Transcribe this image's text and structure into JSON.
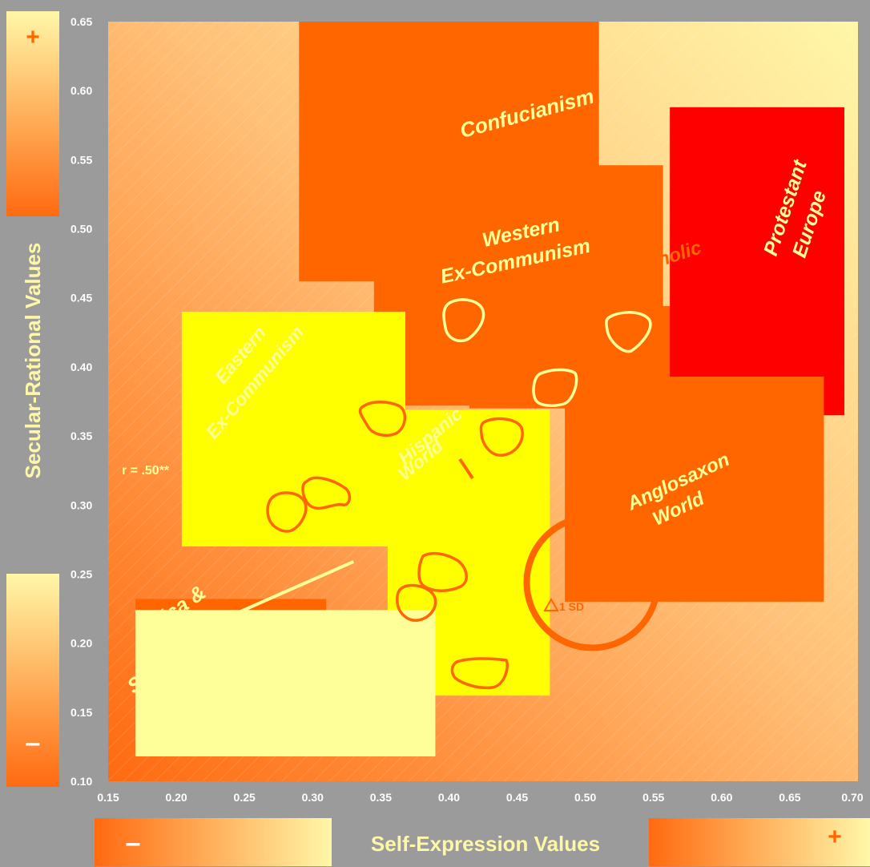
{
  "chart_data": {
    "type": "scatter",
    "title": "",
    "xlabel": "Self-Expression Values",
    "ylabel": "Secular-Rational Values",
    "xlim": [
      0.15,
      0.7
    ],
    "ylim": [
      0.1,
      0.65
    ],
    "x_ticks": [
      "0.15",
      "0.20",
      "0.25",
      "0.30",
      "0.35",
      "0.40",
      "0.45",
      "0.50",
      "0.55",
      "0.60",
      "0.65",
      "0.70"
    ],
    "y_ticks": [
      "0.65",
      "0.60",
      "0.55",
      "0.50",
      "0.45",
      "0.40",
      "0.35",
      "0.30",
      "0.25",
      "0.20",
      "0.15",
      "0.10"
    ],
    "legend_signs": {
      "y_top": "+",
      "y_bottom": "–",
      "x_left": "–",
      "x_right": "+"
    },
    "correlation_label": "r = .50**",
    "sd_label": "1 SD",
    "colors": {
      "frame": "#9b9b9b",
      "gradient_low": "#ff6a10",
      "gradient_high": "#fff7a8",
      "zone_orange": "#ff6600",
      "zone_red": "#ff0000",
      "zone_yellow": "#ffff00",
      "zone_pale": "#ffff99",
      "zone_label": "#ffff99",
      "tick_label": "#ffffff"
    },
    "zones": [
      {
        "name": "Confucianism",
        "x": [
          0.29,
          0.51
        ],
        "y": [
          0.462,
          0.65
        ],
        "color": "#ff6600"
      },
      {
        "name": "Western Ex-Communism",
        "x": [
          0.345,
          0.557
        ],
        "y": [
          0.372,
          0.546
        ],
        "color": "#ff6600"
      },
      {
        "name": "Catholic",
        "x": [
          0.415,
          0.58
        ],
        "y": [
          0.37,
          0.444
        ],
        "color": "#ff6600"
      },
      {
        "name": "Protestant Europe",
        "x": [
          0.562,
          0.69
        ],
        "y": [
          0.365,
          0.588
        ],
        "color": "#ff0000"
      },
      {
        "name": "Eastern Ex-Communism",
        "x": [
          0.204,
          0.368
        ],
        "y": [
          0.27,
          0.44
        ],
        "color": "#ffff00"
      },
      {
        "name": "Hispanic World",
        "x": [
          0.355,
          0.474
        ],
        "y": [
          0.162,
          0.369
        ],
        "color": "#ffff00"
      },
      {
        "name": "Anglosaxon World",
        "x": [
          0.485,
          0.675
        ],
        "y": [
          0.23,
          0.393
        ],
        "color": "#ff6600"
      },
      {
        "name": "Africa & South Asia",
        "x": [
          0.17,
          0.31
        ],
        "y": [
          0.172,
          0.232
        ],
        "color": "#ff6600"
      },
      {
        "name": "",
        "x": [
          0.17,
          0.39
        ],
        "y": [
          0.118,
          0.224
        ],
        "color": "#ffff99"
      }
    ],
    "zone_labels": {
      "confucianism": "Confucianism",
      "western_1": "Western",
      "western_2": "Ex-Communism",
      "catholic": "Catholic",
      "protestant_1": "Protestant",
      "protestant_2": "Europe",
      "eastern_1": "Eastern",
      "eastern_2": "Ex-Communism",
      "hispanic_1": "Hispanic",
      "hispanic_2": "World",
      "anglo_1": "Anglosaxon",
      "anglo_2": "World",
      "africa_1": "Africa &",
      "africa_2": "South Asia"
    },
    "regression_line": {
      "x": [
        0.245,
        0.33
      ],
      "y": [
        0.222,
        0.259
      ]
    },
    "sd_circle": {
      "cx": 0.505,
      "cy": 0.244,
      "r_x": 0.048
    }
  }
}
